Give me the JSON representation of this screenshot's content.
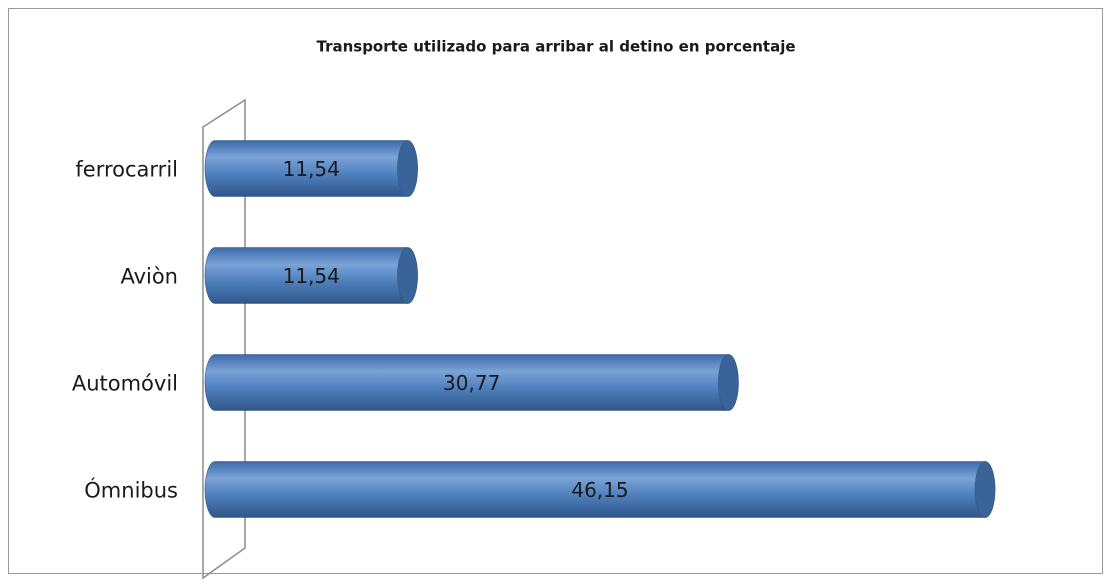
{
  "chart_data": {
    "type": "bar",
    "orientation": "horizontal",
    "title": "Transporte utilizado para arribar al detino en porcentaje",
    "categories": [
      "ferrocarril",
      "Aviòn",
      "Automóvil",
      "Ómnibus"
    ],
    "values": [
      11.54,
      11.54,
      30.77,
      46.15
    ],
    "value_labels": [
      "11,54",
      "11,54",
      "30,77",
      "46,15"
    ],
    "color": "#4f81bd"
  }
}
